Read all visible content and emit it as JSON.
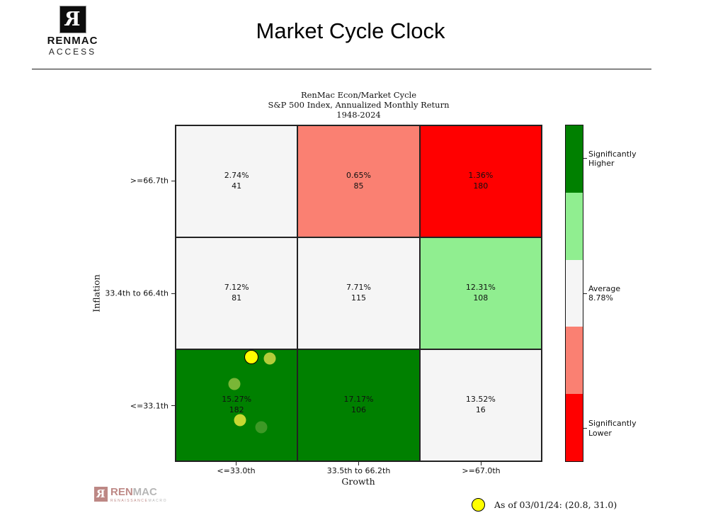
{
  "header": {
    "logo_monogram": "R",
    "logo_line1": "RENMAC",
    "logo_line2": "ACCESS",
    "title": "Market Cycle Clock"
  },
  "chart_data": {
    "type": "heatmap",
    "title_lines": [
      "RenMac Econ/Market Cycle",
      "S&P 500 Index, Annualized Monthly Return",
      "1948-2024"
    ],
    "xlabel": "Growth",
    "ylabel": "Inflation",
    "x_categories": [
      "<=33.0th",
      "33.5th to 66.2th",
      ">=67.0th"
    ],
    "y_categories": [
      ">=66.7th",
      "33.4th to 66.4th",
      "<=33.1th"
    ],
    "average_return": "8.78%",
    "rows": [
      {
        "inflation": ">=66.7th",
        "cells": [
          {
            "value": "2.74%",
            "count": "41",
            "color": "#f5f5f5"
          },
          {
            "value": "0.65%",
            "count": "85",
            "color": "#fa8072"
          },
          {
            "value": "1.36%",
            "count": "180",
            "color": "#ff0000"
          }
        ]
      },
      {
        "inflation": "33.4th to 66.4th",
        "cells": [
          {
            "value": "7.12%",
            "count": "81",
            "color": "#f5f5f5"
          },
          {
            "value": "7.71%",
            "count": "115",
            "color": "#f5f5f5"
          },
          {
            "value": "12.31%",
            "count": "108",
            "color": "#90ee90"
          }
        ]
      },
      {
        "inflation": "<=33.1th",
        "cells": [
          {
            "value": "15.27%",
            "count": "182",
            "color": "#008000"
          },
          {
            "value": "17.17%",
            "count": "106",
            "color": "#008000"
          },
          {
            "value": "13.52%",
            "count": "16",
            "color": "#f5f5f5"
          }
        ]
      }
    ],
    "colorbar": {
      "segments": [
        {
          "color": "#008000"
        },
        {
          "color": "#90ee90"
        },
        {
          "color": "#f5f5f5"
        },
        {
          "color": "#fa8072"
        },
        {
          "color": "#ff0000"
        }
      ],
      "labels": [
        {
          "segment_index": 0,
          "text": "Significantly\nHigher"
        },
        {
          "segment_index": 2,
          "text": "Average\n8.78%"
        },
        {
          "segment_index": 4,
          "text": "Significantly\nLower"
        }
      ]
    },
    "trail_points": [
      {
        "growth": 23.5,
        "inflation": 10.3,
        "color": "#3d9926",
        "current": false
      },
      {
        "growth": 17.7,
        "inflation": 12.5,
        "color": "#c6d832",
        "current": false
      },
      {
        "growth": 16.2,
        "inflation": 23.2,
        "color": "#79b637",
        "current": false
      },
      {
        "growth": 25.8,
        "inflation": 30.6,
        "color": "#b3cc3a",
        "current": false
      },
      {
        "growth": 20.8,
        "inflation": 31.0,
        "color": "#ffff00",
        "current": true
      }
    ],
    "legend_label": "As of 03/01/24:  (20.8, 31.0)",
    "legend_marker_color": "#ffff00"
  },
  "footer": {
    "logo_monogram": "R",
    "logo_part1": "REN",
    "logo_part2": "MAC",
    "logo_sub1": "RENAISSANCE",
    "logo_sub2": "MACRO",
    "logo_red": "#96403c",
    "logo_gray": "#8b8b8b"
  }
}
